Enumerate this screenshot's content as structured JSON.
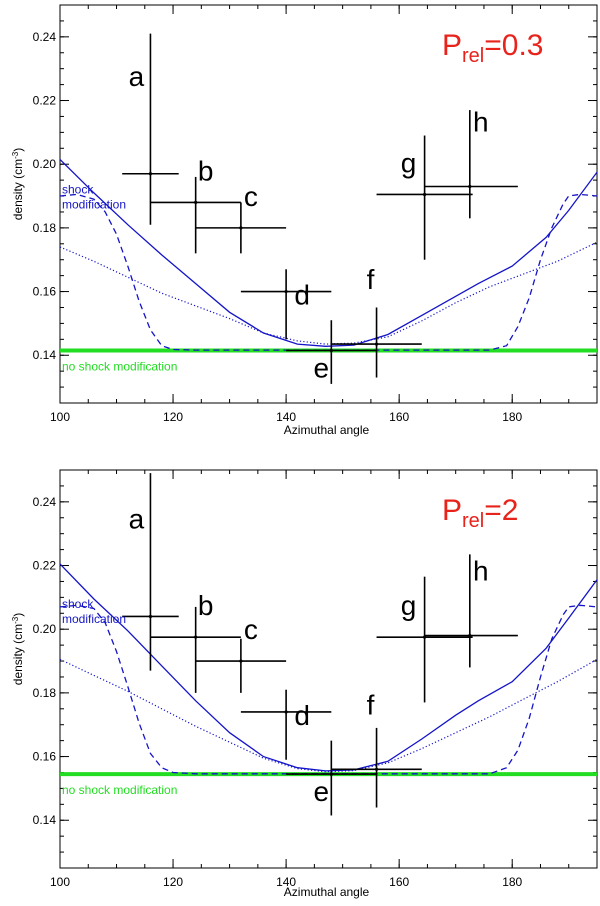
{
  "colors": {
    "model": "#1414c8",
    "baseline": "#22dd22",
    "prel": "#e8231c",
    "data": "#000000"
  },
  "chart_data": [
    {
      "type": "line",
      "title": "P_rel=0.3",
      "title_main": "P",
      "title_sub": "rel",
      "title_value": "=0.3",
      "xlabel": "Azimuthal angle",
      "ylabel": "density (cm-3)",
      "ylabel_base": "density (cm",
      "ylabel_sup": "-3",
      "ylabel_end": ")",
      "xlim": [
        100,
        195
      ],
      "ylim": [
        0.125,
        0.25
      ],
      "xticks": [
        100,
        120,
        140,
        160,
        180
      ],
      "yticks": [
        0.14,
        0.16,
        0.18,
        0.2,
        0.22,
        0.24
      ],
      "yminor": 0.005,
      "xminor": 5,
      "shock_label": [
        "shock",
        "modification"
      ],
      "no_shock_label": "no shock modification",
      "baseline": 0.1415,
      "points": [
        {
          "label": "a",
          "x": 116,
          "xerr": [
            111,
            121
          ],
          "y": 0.197,
          "yerr": [
            0.181,
            0.241
          ]
        },
        {
          "label": "b",
          "x": 124,
          "xerr": [
            116,
            132
          ],
          "y": 0.188,
          "yerr": [
            0.172,
            0.196
          ]
        },
        {
          "label": "c",
          "x": 132,
          "xerr": [
            124,
            140
          ],
          "y": 0.18,
          "yerr": [
            0.172,
            0.188
          ]
        },
        {
          "label": "d",
          "x": 140,
          "xerr": [
            132,
            148
          ],
          "y": 0.16,
          "yerr": [
            0.145,
            0.167
          ]
        },
        {
          "label": "e",
          "x": 148,
          "xerr": [
            140,
            156
          ],
          "y": 0.1415,
          "yerr": [
            0.131,
            0.151
          ]
        },
        {
          "label": "f",
          "x": 156,
          "xerr": [
            148,
            164
          ],
          "y": 0.1435,
          "yerr": [
            0.133,
            0.155
          ]
        },
        {
          "label": "g",
          "x": 164.5,
          "xerr": [
            156,
            173
          ],
          "y": 0.1905,
          "yerr": [
            0.17,
            0.209
          ]
        },
        {
          "label": "h",
          "x": 172.5,
          "xerr": [
            164.5,
            181
          ],
          "y": 0.193,
          "yerr": [
            0.183,
            0.217
          ]
        }
      ],
      "series": [
        {
          "name": "shock modification (solid)",
          "style": "solid",
          "x": [
            100,
            106,
            112,
            118,
            124,
            130,
            136,
            142,
            147,
            152,
            158,
            164,
            170,
            174,
            180,
            186,
            190,
            195
          ],
          "y": [
            0.2015,
            0.191,
            0.181,
            0.1715,
            0.1625,
            0.1535,
            0.147,
            0.1435,
            0.1428,
            0.1432,
            0.1465,
            0.1525,
            0.1585,
            0.1625,
            0.168,
            0.177,
            0.1855,
            0.1975
          ]
        },
        {
          "name": "shock modification (dotted)",
          "style": "dotted",
          "x": [
            100,
            106,
            112,
            118,
            124,
            130,
            136,
            142,
            147,
            152,
            158,
            164,
            170,
            176,
            182,
            188,
            195
          ],
          "y": [
            0.174,
            0.1695,
            0.1645,
            0.1595,
            0.1555,
            0.1515,
            0.147,
            0.1445,
            0.1435,
            0.1438,
            0.1458,
            0.1508,
            0.1565,
            0.1615,
            0.1655,
            0.1695,
            0.1755
          ]
        },
        {
          "name": "shock modification (dashed)",
          "style": "dashed",
          "x": [
            100,
            103,
            106,
            108,
            110,
            112,
            114,
            116,
            118,
            120,
            124,
            176,
            179,
            181,
            183,
            185,
            187,
            189,
            190,
            192,
            195
          ],
          "y": [
            0.19,
            0.1905,
            0.189,
            0.185,
            0.178,
            0.168,
            0.157,
            0.148,
            0.143,
            0.1418,
            0.1416,
            0.1416,
            0.143,
            0.149,
            0.158,
            0.17,
            0.18,
            0.1875,
            0.19,
            0.1905,
            0.19
          ]
        }
      ]
    },
    {
      "type": "line",
      "title": "P_rel=2",
      "title_main": "P",
      "title_sub": "rel",
      "title_value": "=2",
      "xlabel": "Azimuthal angle",
      "ylabel": "density (cm-3)",
      "ylabel_base": "density (cm",
      "ylabel_sup": "-3",
      "ylabel_end": ")",
      "xlim": [
        100,
        195
      ],
      "ylim": [
        0.125,
        0.25
      ],
      "xticks": [
        100,
        120,
        140,
        160,
        180
      ],
      "yticks": [
        0.14,
        0.16,
        0.18,
        0.2,
        0.22,
        0.24
      ],
      "yminor": 0.005,
      "xminor": 5,
      "shock_label": [
        "shock",
        "modification"
      ],
      "no_shock_label": "no shock modification",
      "baseline": 0.1545,
      "points": [
        {
          "label": "a",
          "x": 116,
          "xerr": [
            111,
            121
          ],
          "y": 0.204,
          "yerr": [
            0.187,
            0.249
          ]
        },
        {
          "label": "b",
          "x": 124,
          "xerr": [
            116,
            132
          ],
          "y": 0.1975,
          "yerr": [
            0.18,
            0.207
          ]
        },
        {
          "label": "c",
          "x": 132,
          "xerr": [
            124,
            140
          ],
          "y": 0.19,
          "yerr": [
            0.18,
            0.197
          ]
        },
        {
          "label": "d",
          "x": 140,
          "xerr": [
            132,
            148
          ],
          "y": 0.174,
          "yerr": [
            0.159,
            0.181
          ]
        },
        {
          "label": "e",
          "x": 148,
          "xerr": [
            140,
            156
          ],
          "y": 0.1545,
          "yerr": [
            0.1415,
            0.165
          ]
        },
        {
          "label": "f",
          "x": 156,
          "xerr": [
            148,
            164
          ],
          "y": 0.156,
          "yerr": [
            0.144,
            0.169
          ]
        },
        {
          "label": "g",
          "x": 164.5,
          "xerr": [
            156,
            173
          ],
          "y": 0.1975,
          "yerr": [
            0.177,
            0.2165
          ]
        },
        {
          "label": "h",
          "x": 172.5,
          "xerr": [
            164.5,
            181
          ],
          "y": 0.198,
          "yerr": [
            0.188,
            0.2235
          ]
        }
      ],
      "series": [
        {
          "name": "shock modification (solid)",
          "style": "solid",
          "x": [
            100,
            106,
            112,
            118,
            124,
            130,
            136,
            142,
            147,
            152,
            158,
            164,
            170,
            174,
            180,
            186,
            190,
            195
          ],
          "y": [
            0.2205,
            0.2095,
            0.1995,
            0.1885,
            0.1775,
            0.1675,
            0.16,
            0.1565,
            0.1555,
            0.1558,
            0.1585,
            0.1655,
            0.173,
            0.1775,
            0.1835,
            0.194,
            0.2035,
            0.2155
          ]
        },
        {
          "name": "shock modification (dotted)",
          "style": "dotted",
          "x": [
            100,
            106,
            112,
            118,
            124,
            130,
            136,
            142,
            147,
            152,
            158,
            164,
            170,
            176,
            182,
            188,
            195
          ],
          "y": [
            0.1905,
            0.1855,
            0.1805,
            0.175,
            0.1695,
            0.1645,
            0.1595,
            0.1562,
            0.1552,
            0.1556,
            0.158,
            0.1625,
            0.1675,
            0.1725,
            0.178,
            0.1835,
            0.1905
          ]
        },
        {
          "name": "shock modification (dashed)",
          "style": "dashed",
          "x": [
            100,
            103,
            106,
            108,
            110,
            112,
            114,
            116,
            118,
            120,
            124,
            176,
            179,
            181,
            183,
            185,
            187,
            189,
            190,
            192,
            195
          ],
          "y": [
            0.207,
            0.2075,
            0.2065,
            0.202,
            0.193,
            0.182,
            0.1705,
            0.161,
            0.1565,
            0.155,
            0.1546,
            0.1546,
            0.1565,
            0.162,
            0.172,
            0.185,
            0.197,
            0.2045,
            0.207,
            0.2075,
            0.207
          ]
        }
      ]
    }
  ]
}
